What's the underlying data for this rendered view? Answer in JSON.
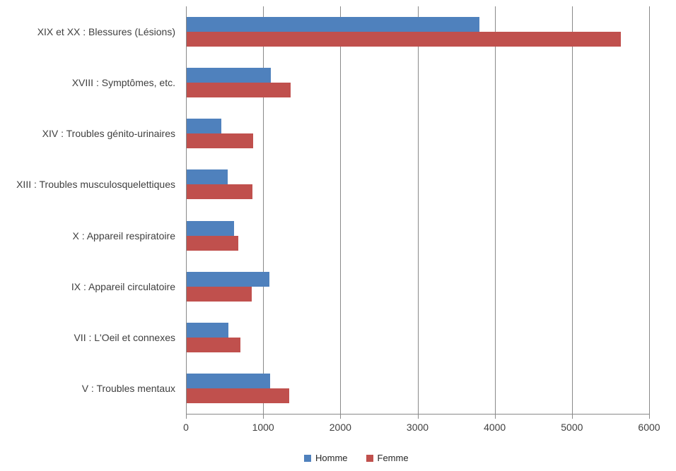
{
  "chart_data": {
    "type": "bar",
    "orientation": "horizontal",
    "title": "",
    "categories": [
      "XIX et XX : Blessures (Lésions)",
      "XVIII : Symptômes, etc.",
      "XIV : Troubles génito-urinaires",
      "XIII : Troubles musculosquelettiques",
      "X : Appareil respiratoire",
      "IX : Appareil circulatoire",
      "VII : L'Oeil et connexes",
      "V : Troubles mentaux"
    ],
    "series": [
      {
        "name": "Homme",
        "color": "#4F81BD",
        "values": [
          3790,
          1090,
          445,
          530,
          610,
          1070,
          545,
          1080
        ]
      },
      {
        "name": "Femme",
        "color": "#C0504D",
        "values": [
          5620,
          1350,
          865,
          850,
          670,
          845,
          700,
          1325
        ]
      }
    ],
    "xlim": [
      0,
      6000
    ],
    "x_ticks": [
      "0",
      "1000",
      "2000",
      "3000",
      "4000",
      "5000",
      "6000"
    ],
    "grid": true,
    "legend_position": "bottom",
    "axis_color": "#898989",
    "text_color": "#3f3f3f",
    "background": "#ffffff"
  }
}
